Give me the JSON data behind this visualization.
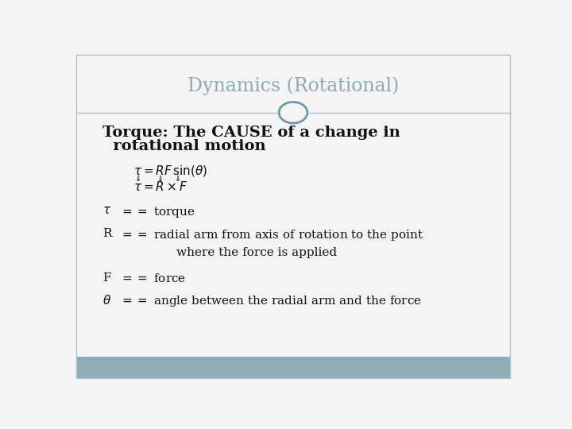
{
  "title": "Dynamics (Rotational)",
  "title_color": "#8aacb8",
  "title_fontsize": 17,
  "bg_color": "#f4f4f4",
  "header_line_color": "#adc4cc",
  "footer_color": "#8faeb8",
  "circle_color": "#6a9aaa",
  "bold_line1": "Torque: The CAUSE of a change in",
  "bold_line2": "  rotational motion",
  "bold_fontsize": 14,
  "eq1": "$\\tau = RF\\,\\mathrm{sin}(\\theta)$",
  "eq2": "$\\tau = R \\times F$",
  "def1_math": "$\\tau$",
  "def1_text": "$== $ torque",
  "def2_math": "R",
  "def2_text": "$==$ radial arm from axis of rotation to the point",
  "def2b_text": "       where the force is applied",
  "def3_math": "F",
  "def3_text": "$==$ force",
  "def4_math": "$\\theta$",
  "def4_text": "$==$ angle between the radial arm and the force",
  "math_fontsize": 11,
  "def_fontsize": 11,
  "text_color": "#111111"
}
